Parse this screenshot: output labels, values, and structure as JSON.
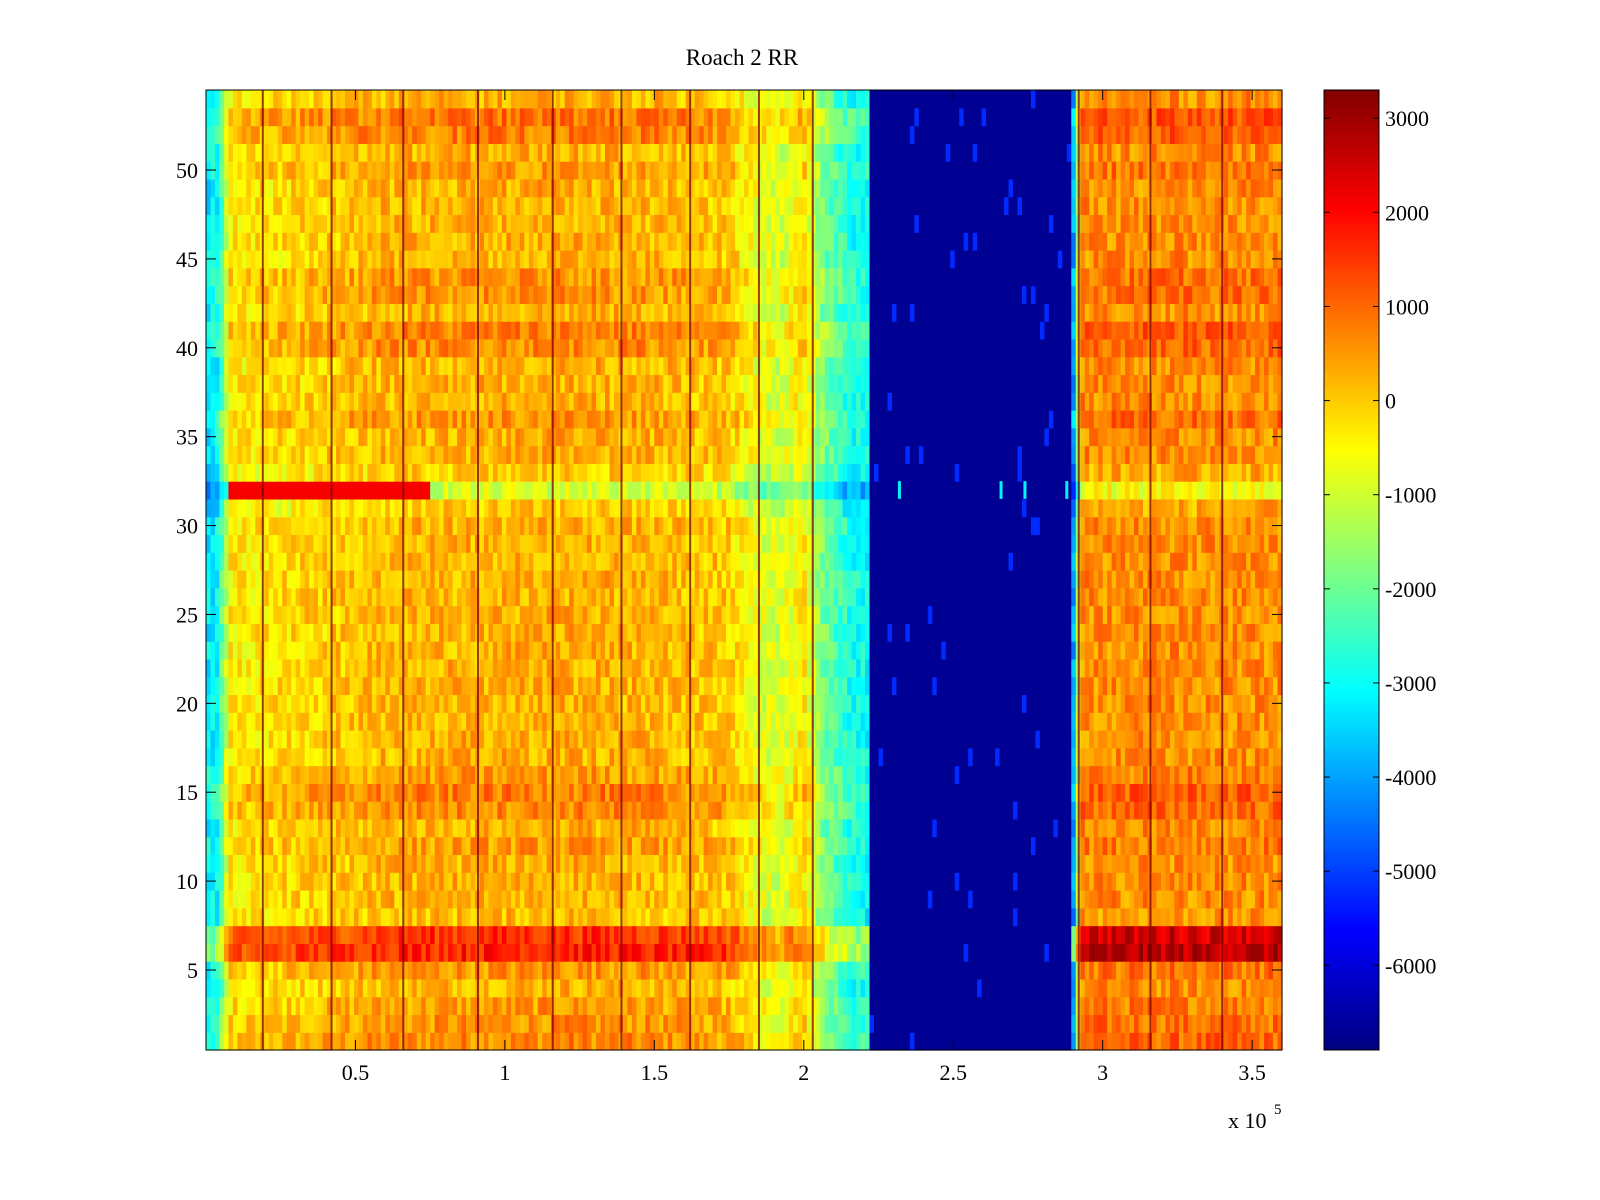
{
  "chart_data": {
    "type": "heatmap",
    "title": "Roach 2 RR",
    "xlabel": "",
    "ylabel": "",
    "x_multiplier_text": "x 10",
    "x_multiplier_exp": "5",
    "xlim": [
      0,
      360000
    ],
    "ylim": [
      0.5,
      54.5
    ],
    "x_ticks": [
      {
        "value": 0.5,
        "label": "0.5"
      },
      {
        "value": 1,
        "label": "1"
      },
      {
        "value": 1.5,
        "label": "1.5"
      },
      {
        "value": 2,
        "label": "2"
      },
      {
        "value": 2.5,
        "label": "2.5"
      },
      {
        "value": 3,
        "label": "3"
      },
      {
        "value": 3.5,
        "label": "3.5"
      }
    ],
    "y_ticks": [
      {
        "value": 5,
        "label": "5"
      },
      {
        "value": 10,
        "label": "10"
      },
      {
        "value": 15,
        "label": "15"
      },
      {
        "value": 20,
        "label": "20"
      },
      {
        "value": 25,
        "label": "25"
      },
      {
        "value": 30,
        "label": "30"
      },
      {
        "value": 35,
        "label": "35"
      },
      {
        "value": 40,
        "label": "40"
      },
      {
        "value": 45,
        "label": "45"
      },
      {
        "value": 50,
        "label": "50"
      }
    ],
    "colormap": "jet",
    "color_range": [
      -6900,
      3300
    ],
    "colorbar_ticks": [
      {
        "value": 3000,
        "label": "3000"
      },
      {
        "value": 2000,
        "label": "2000"
      },
      {
        "value": 1000,
        "label": "1000"
      },
      {
        "value": 0,
        "label": "0"
      },
      {
        "value": -1000,
        "label": "-1000"
      },
      {
        "value": -2000,
        "label": "-2000"
      },
      {
        "value": -3000,
        "label": "-3000"
      },
      {
        "value": -4000,
        "label": "-4000"
      },
      {
        "value": -5000,
        "label": "-5000"
      },
      {
        "value": -6000,
        "label": "-6000"
      }
    ],
    "rows": 54,
    "x_profile": [
      {
        "x": 0,
        "value": -3300
      },
      {
        "x": 4000,
        "value": -3000
      },
      {
        "x": 8000,
        "value": -400
      },
      {
        "x": 60000,
        "value": 200
      },
      {
        "x": 120000,
        "value": 300
      },
      {
        "x": 150000,
        "value": 200
      },
      {
        "x": 175000,
        "value": 0
      },
      {
        "x": 185000,
        "value": -800
      },
      {
        "x": 192000,
        "value": -1000
      },
      {
        "x": 200000,
        "value": -300
      },
      {
        "x": 206000,
        "value": -1800
      },
      {
        "x": 215000,
        "value": -2800
      },
      {
        "x": 222000,
        "value": -3000
      },
      {
        "x": 222500,
        "value": -6700
      },
      {
        "x": 289000,
        "value": -6700
      },
      {
        "x": 290500,
        "value": -3500
      },
      {
        "x": 293000,
        "value": 600
      },
      {
        "x": 360000,
        "value": 600
      }
    ],
    "row_adjust": [
      {
        "row": 1,
        "value": 400
      },
      {
        "row": 2,
        "value": 300
      },
      {
        "row": 3,
        "value": 200
      },
      {
        "row": 5,
        "value": 300
      },
      {
        "row": 6,
        "value": 1500
      },
      {
        "row": 7,
        "value": 1300
      },
      {
        "row": 8,
        "value": -100
      },
      {
        "row": 12,
        "value": 200
      },
      {
        "row": 14,
        "value": 400
      },
      {
        "row": 15,
        "value": 500
      },
      {
        "row": 16,
        "value": 200
      },
      {
        "row": 31,
        "value": -300
      },
      {
        "row": 32,
        "value": -1200
      },
      {
        "row": 33,
        "value": -300
      },
      {
        "row": 36,
        "value": 300
      },
      {
        "row": 40,
        "value": 400
      },
      {
        "row": 41,
        "value": 500
      },
      {
        "row": 43,
        "value": 300
      },
      {
        "row": 44,
        "value": 300
      },
      {
        "row": 50,
        "value": 200
      },
      {
        "row": 52,
        "value": 500
      },
      {
        "row": 53,
        "value": 600
      }
    ],
    "row_bands": [
      {
        "row": 32,
        "x_start": 8000,
        "x_end": 75000,
        "value": 2100
      }
    ],
    "stripe_lines_x": [
      19000,
      42000,
      66000,
      91000,
      116000,
      139000,
      162000,
      185000,
      203000,
      292000,
      316000,
      340000
    ],
    "blue_region_spikes_x": [
      232000,
      266000,
      274000,
      288000
    ]
  }
}
